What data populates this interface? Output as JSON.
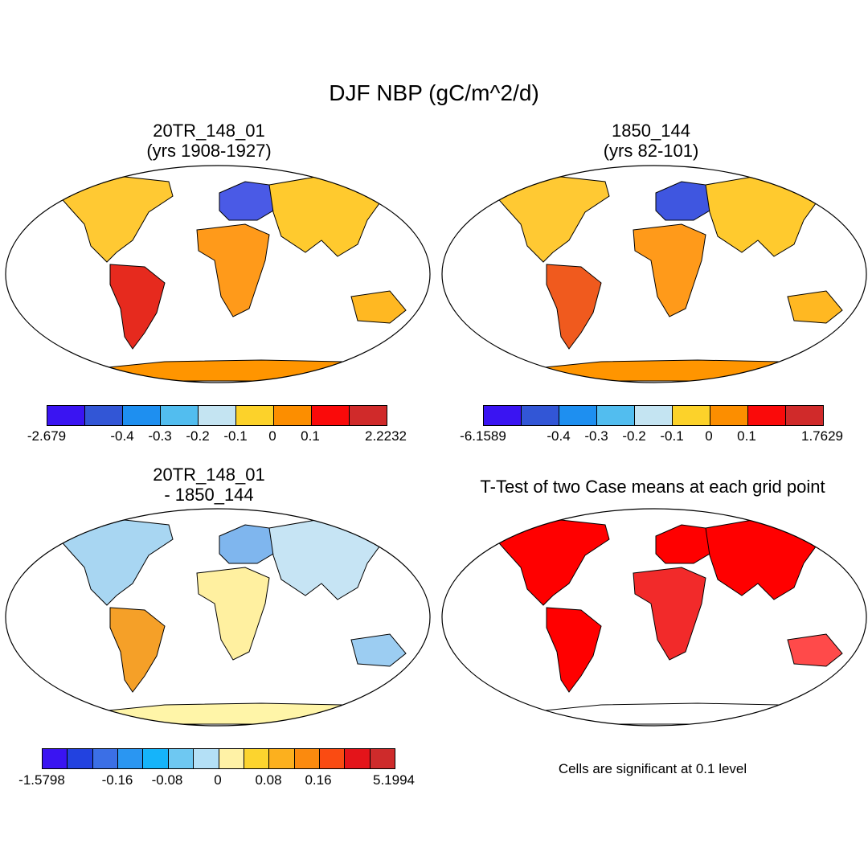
{
  "figure_title": "DJF NBP (gC/m^2/d)",
  "colors": {
    "ocean": "#ffffff",
    "outline": "#000000",
    "sig_red": "#ff0000"
  },
  "panels": [
    {
      "id": "p1",
      "title_line1": "20TR_148_01",
      "title_line2": "(yrs 1908-1927)",
      "palette": [
        "#3a14f2",
        "#3256d6",
        "#1e8ff0",
        "#52bdef",
        "#c4e4f2",
        "#fcd22a",
        "#fc8e00",
        "#fa0a0a",
        "#d02a2a"
      ],
      "tick_labels": [
        "-2.679",
        "-0.4",
        "-0.3",
        "-0.2",
        "-0.1",
        "0",
        "0.1",
        "2.2232"
      ],
      "regions": {
        "na": "#ffc933",
        "eu": "#4a5ae6",
        "asia": "#ffca2e",
        "af": "#ff9a1a",
        "sa": "#e62a1e",
        "au": "#ffb822",
        "ant": "#ff9500"
      }
    },
    {
      "id": "p2",
      "title_line1": "1850_144",
      "title_line2": "(yrs 82-101)",
      "palette": [
        "#3a14f2",
        "#3256d6",
        "#1e8ff0",
        "#52bdef",
        "#c4e4f2",
        "#fcd22a",
        "#fc8e00",
        "#fa0a0a",
        "#d02a2a"
      ],
      "tick_labels": [
        "-6.1589",
        "-0.4",
        "-0.3",
        "-0.2",
        "-0.1",
        "0",
        "0.1",
        "1.7629"
      ],
      "regions": {
        "na": "#ffc933",
        "eu": "#3f56e0",
        "asia": "#ffca2e",
        "af": "#ff9a1a",
        "sa": "#f05a1e",
        "au": "#ffb822",
        "ant": "#ff9500"
      }
    },
    {
      "id": "p3",
      "title_line1": "20TR_148_01",
      "title_line2": "- 1850_144",
      "palette": [
        "#3a14f2",
        "#2242e0",
        "#3b6fe6",
        "#2a96f2",
        "#15b4fa",
        "#6ec8f2",
        "#b4e0f6",
        "#fff2a6",
        "#fcd42e",
        "#fcb01e",
        "#fb8a0e",
        "#fa4b12",
        "#e4141a",
        "#ce2b2b"
      ],
      "tick_labels": [
        "-1.5798",
        "-0.16",
        "-0.08",
        "0",
        "0.08",
        "0.16",
        "5.1994"
      ],
      "regions": {
        "na": "#a8d6f2",
        "eu": "#7fb6ee",
        "asia": "#c6e4f4",
        "af": "#fff0a0",
        "sa": "#f5a028",
        "au": "#9ccdf2",
        "ant": "#fff5a8"
      }
    },
    {
      "id": "p4",
      "title_line1": "T-Test of two Case means at each grid point",
      "note": "Cells are significant at 0.1 level",
      "regions": {
        "na": "#ff0000",
        "eu": "#ff0000",
        "asia": "#ff0000",
        "af": "#f22a2a",
        "sa": "#ff0000",
        "au": "#ff4a4a",
        "ant": "#ffffff"
      }
    }
  ]
}
